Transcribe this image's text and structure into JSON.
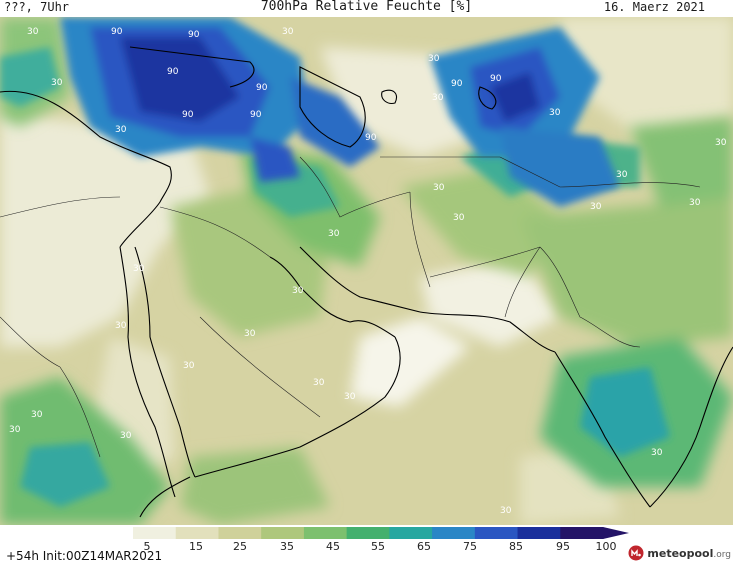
{
  "header": {
    "location": "???, 7Uhr",
    "title": "700hPa Relative Feuchte [%]",
    "date": "16. Maerz 2021"
  },
  "footer": {
    "run_info": "+54h Init:00Z14MAR2021",
    "logo_name": "meteopool",
    "logo_tld": ".org"
  },
  "colorbar": {
    "ticks": [
      "5",
      "15",
      "25",
      "35",
      "45",
      "55",
      "65",
      "75",
      "85",
      "95",
      "100"
    ],
    "colors": [
      "#ffffff",
      "#f0f0e0",
      "#e2e0bc",
      "#cfd19a",
      "#aec77c",
      "#7dc06e",
      "#44b06e",
      "#27a7a0",
      "#2a86c6",
      "#2a56c2",
      "#1a2f9c",
      "#241467"
    ]
  },
  "map_labels": [
    {
      "text": "30"
    },
    {
      "text": "30"
    },
    {
      "text": "30"
    },
    {
      "text": "30"
    },
    {
      "text": "30"
    },
    {
      "text": "30"
    },
    {
      "text": "30"
    },
    {
      "text": "30"
    },
    {
      "text": "30"
    },
    {
      "text": "30"
    },
    {
      "text": "30"
    },
    {
      "text": "30"
    },
    {
      "text": "30"
    },
    {
      "text": "30"
    },
    {
      "text": "30"
    },
    {
      "text": "30"
    },
    {
      "text": "30"
    },
    {
      "text": "30"
    },
    {
      "text": "30"
    },
    {
      "text": "30"
    },
    {
      "text": "30"
    },
    {
      "text": "30"
    },
    {
      "text": "30"
    },
    {
      "text": "30"
    },
    {
      "text": "30"
    },
    {
      "text": "30"
    },
    {
      "text": "90"
    },
    {
      "text": "90"
    },
    {
      "text": "90"
    },
    {
      "text": "90"
    },
    {
      "text": "90"
    },
    {
      "text": "90"
    },
    {
      "text": "90"
    },
    {
      "text": "90"
    },
    {
      "text": "90"
    }
  ]
}
